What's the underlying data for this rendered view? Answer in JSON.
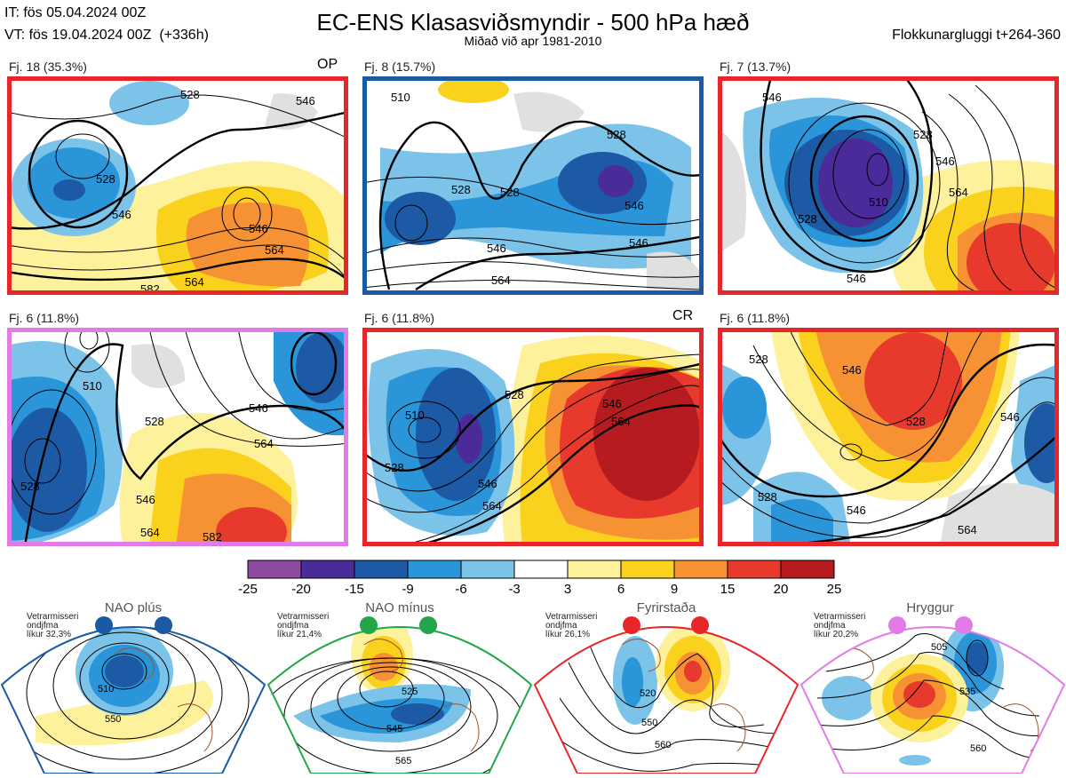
{
  "header": {
    "it_line": "IT: fös 05.04.2024 00Z",
    "vt_line": "VT: fös 19.04.2024 00Z  (+336h)",
    "title": "EC-ENS Klasasviðsmyndir - 500 hPa hæð",
    "subtitle": "Miðað við apr 1981-2010",
    "window": "Flokkunargluggi t+264-360"
  },
  "panels": [
    {
      "label": "Fj. 18 (35.3%)",
      "tag": "OP",
      "border": "#e8262a",
      "contours": [
        "528",
        "546",
        "564",
        "528",
        "546",
        "564",
        "582"
      ]
    },
    {
      "label": "Fj. 8 (15.7%)",
      "tag": "",
      "border": "#1a5aa5",
      "contours": [
        "510",
        "528",
        "546",
        "564",
        "528",
        "546"
      ]
    },
    {
      "label": "Fj. 7 (13.7%)",
      "tag": "",
      "border": "#e8262a",
      "contours": [
        "510",
        "528",
        "546",
        "564",
        "528"
      ]
    },
    {
      "label": "Fj. 6 (11.8%)",
      "tag": "",
      "border": "#e27ae8",
      "contours": [
        "510",
        "528",
        "546",
        "564",
        "582"
      ]
    },
    {
      "label": "Fj. 6 (11.8%)",
      "tag": "CR",
      "border": "#e8262a",
      "contours": [
        "510",
        "528",
        "546",
        "564",
        "528"
      ]
    },
    {
      "label": "Fj. 6 (11.8%)",
      "tag": "",
      "border": "#e8262a",
      "contours": [
        "528",
        "546",
        "564",
        "528"
      ]
    }
  ],
  "colorbar": {
    "colors": [
      "#8e4aa1",
      "#4b2b99",
      "#1d5aa6",
      "#2a95d8",
      "#7cc3ea",
      "#ffffff",
      "#fdf19b",
      "#fad21e",
      "#f79234",
      "#e73a2c",
      "#b61b1f"
    ],
    "labels": [
      "-25",
      "-20",
      "-15",
      "-9",
      "-6",
      "-3",
      "3",
      "6",
      "9",
      "15",
      "20",
      "25"
    ]
  },
  "regimes": [
    {
      "name": "NAO plús",
      "prob_title": "Vetrarmisseri",
      "prob_sub": "ondjfma",
      "prob_value": "líkur 32,3%",
      "color": "#1a5aa5",
      "contours": [
        "510",
        "550"
      ]
    },
    {
      "name": "NAO mínus",
      "prob_title": "Vetrarmisseri",
      "prob_sub": "ondjfma",
      "prob_value": "líkur 21,4%",
      "color": "#23a649",
      "contours": [
        "525",
        "545",
        "565"
      ]
    },
    {
      "name": "Fyrirstaða",
      "prob_title": "Vetrarmisseri",
      "prob_sub": "ondjfma",
      "prob_value": "líkur 26,1%",
      "color": "#e8262a",
      "contours": [
        "520",
        "550",
        "560"
      ]
    },
    {
      "name": "Hryggur",
      "prob_title": "Vetrarmisseri",
      "prob_sub": "ondjfma",
      "prob_value": "líkur 20,2%",
      "color": "#e27ae8",
      "contours": [
        "505",
        "535",
        "560"
      ]
    }
  ]
}
